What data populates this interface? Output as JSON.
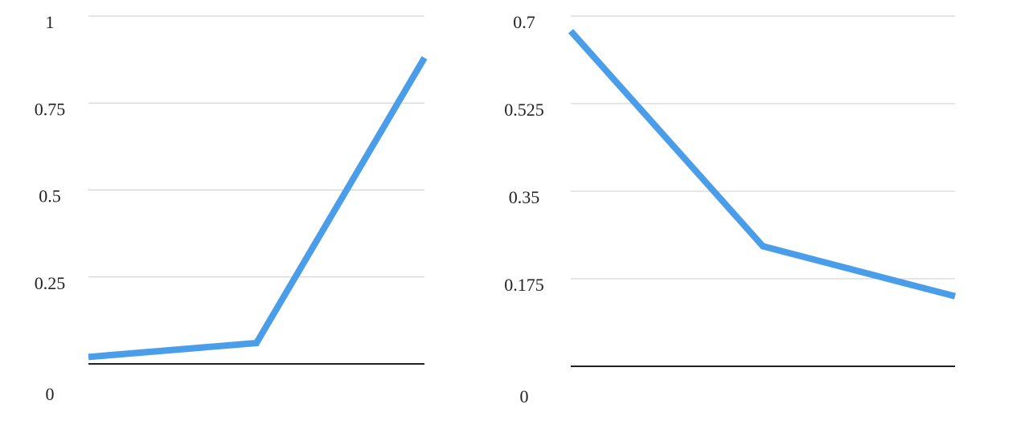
{
  "chart_data": [
    {
      "type": "line",
      "categories": [
        null,
        null,
        null
      ],
      "values": [
        0.02,
        0.06,
        0.88
      ],
      "color": "#4a9de8",
      "ylim": [
        0,
        1
      ],
      "yticks": [
        0,
        0.25,
        0.5,
        0.75,
        1
      ],
      "grid": true
    },
    {
      "type": "line",
      "categories": [
        null,
        null,
        null
      ],
      "values": [
        0.67,
        0.24,
        0.14
      ],
      "color": "#4a9de8",
      "ylim": [
        0,
        0.7
      ],
      "yticks": [
        0,
        0.175,
        0.35,
        0.525,
        0.7
      ],
      "grid": true
    }
  ]
}
